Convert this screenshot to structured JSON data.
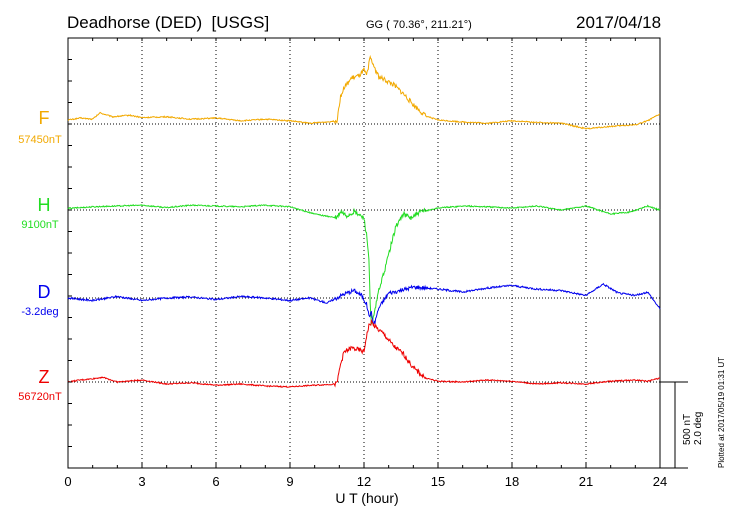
{
  "header": {
    "station": "Deadhorse (DED)  [USGS]",
    "coords": "GG ( 70.36°, 211.21°)",
    "date": "2017/04/18"
  },
  "plotted_note": "Plotted at 2017/05/19 01:31  UT",
  "scale_note": {
    "line1": "500 nT",
    "line2": "2.0 deg"
  },
  "chart_data": {
    "type": "line",
    "title": "",
    "xlabel": "U T (hour)",
    "ylabel": "",
    "xlim": [
      0,
      24
    ],
    "xticks": [
      "0",
      "3",
      "6",
      "9",
      "12",
      "15",
      "18",
      "21",
      "24"
    ],
    "grid": "dotted vertical at 3-hour intervals; dotted baseline per trace",
    "series": [
      {
        "name": "F",
        "baseline_label": "57450nT",
        "color": "#f2a900",
        "x": [
          0,
          0.5,
          1,
          1.3,
          1.8,
          2.5,
          3,
          4,
          5,
          6,
          7,
          8,
          9,
          9.8,
          10.5,
          10.9,
          11.05,
          11.2,
          11.5,
          11.8,
          12.0,
          12.1,
          12.25,
          12.4,
          12.6,
          12.9,
          13.2,
          13.6,
          14.0,
          14.5,
          15,
          16,
          17,
          18,
          19,
          20,
          21,
          22,
          23,
          23.5,
          24
        ],
        "values": [
          10,
          15,
          12,
          28,
          18,
          22,
          16,
          18,
          12,
          15,
          8,
          12,
          8,
          2,
          5,
          8,
          70,
          90,
          115,
          120,
          135,
          120,
          165,
          145,
          118,
          108,
          98,
          75,
          48,
          20,
          10,
          5,
          2,
          8,
          4,
          2,
          -12,
          -6,
          -2,
          8,
          25
        ]
      },
      {
        "name": "H",
        "baseline_label": "9100nT",
        "color": "#22dd22",
        "x": [
          0,
          1,
          2,
          3,
          4,
          5,
          6,
          7,
          8,
          9,
          10,
          10.9,
          11.05,
          11.3,
          11.6,
          12.0,
          12.1,
          12.2,
          12.25,
          12.3,
          12.45,
          12.6,
          12.8,
          13.0,
          13.3,
          13.6,
          13.9,
          14.3,
          15,
          16,
          17,
          18,
          19,
          20,
          21,
          22,
          22.8,
          23.5,
          24
        ],
        "values": [
          4,
          8,
          10,
          12,
          6,
          12,
          10,
          8,
          12,
          8,
          -10,
          -20,
          -5,
          -15,
          -5,
          -20,
          -60,
          -120,
          -240,
          -290,
          -250,
          -200,
          -160,
          -110,
          -40,
          -10,
          -20,
          -5,
          5,
          10,
          8,
          5,
          10,
          0,
          10,
          -10,
          -5,
          10,
          0
        ],
        "scale": "500 nT per bar"
      },
      {
        "name": "D",
        "baseline_label": "-3.2deg",
        "color": "#0000ee",
        "x": [
          0,
          1,
          2,
          3,
          4,
          5,
          6,
          7,
          8,
          9,
          9.8,
          10.5,
          11.2,
          11.6,
          11.9,
          12.1,
          12.2,
          12.3,
          12.4,
          12.6,
          13.0,
          13.5,
          14,
          15,
          16,
          17,
          18,
          19,
          20,
          21,
          21.7,
          22.3,
          23,
          23.5,
          24
        ],
        "values": [
          0,
          -0.05,
          0.03,
          -0.05,
          0,
          0.02,
          -0.03,
          0.03,
          0,
          -0.05,
          0,
          -0.1,
          0.08,
          0.15,
          0.05,
          -0.12,
          -0.35,
          -0.3,
          -0.55,
          -0.2,
          0.1,
          0.15,
          0.22,
          0.18,
          0.12,
          0.2,
          0.25,
          0.18,
          0.15,
          0.05,
          0.28,
          0.1,
          0.05,
          0.12,
          -0.22
        ],
        "scale": "2.0 deg per bar"
      },
      {
        "name": "Z",
        "baseline_label": "56720nT",
        "color": "#ee0000",
        "x": [
          0,
          0.5,
          1,
          1.4,
          2,
          3,
          4,
          5,
          6,
          7,
          8,
          9,
          10,
          10.9,
          11.05,
          11.2,
          11.5,
          11.8,
          12.0,
          12.1,
          12.2,
          12.3,
          12.5,
          12.8,
          13.2,
          13.6,
          14.0,
          14.5,
          15,
          16,
          17,
          18,
          19,
          20,
          21,
          22,
          23,
          23.5,
          24
        ],
        "values": [
          0,
          5,
          8,
          12,
          0,
          5,
          -5,
          -2,
          -8,
          -5,
          -10,
          -12,
          -8,
          -5,
          45,
          75,
          85,
          80,
          75,
          115,
          140,
          150,
          135,
          120,
          90,
          70,
          35,
          10,
          2,
          0,
          5,
          2,
          -5,
          -2,
          -5,
          2,
          5,
          2,
          10
        ]
      }
    ],
    "scale_bar": "500 nT / 2.0 deg"
  }
}
